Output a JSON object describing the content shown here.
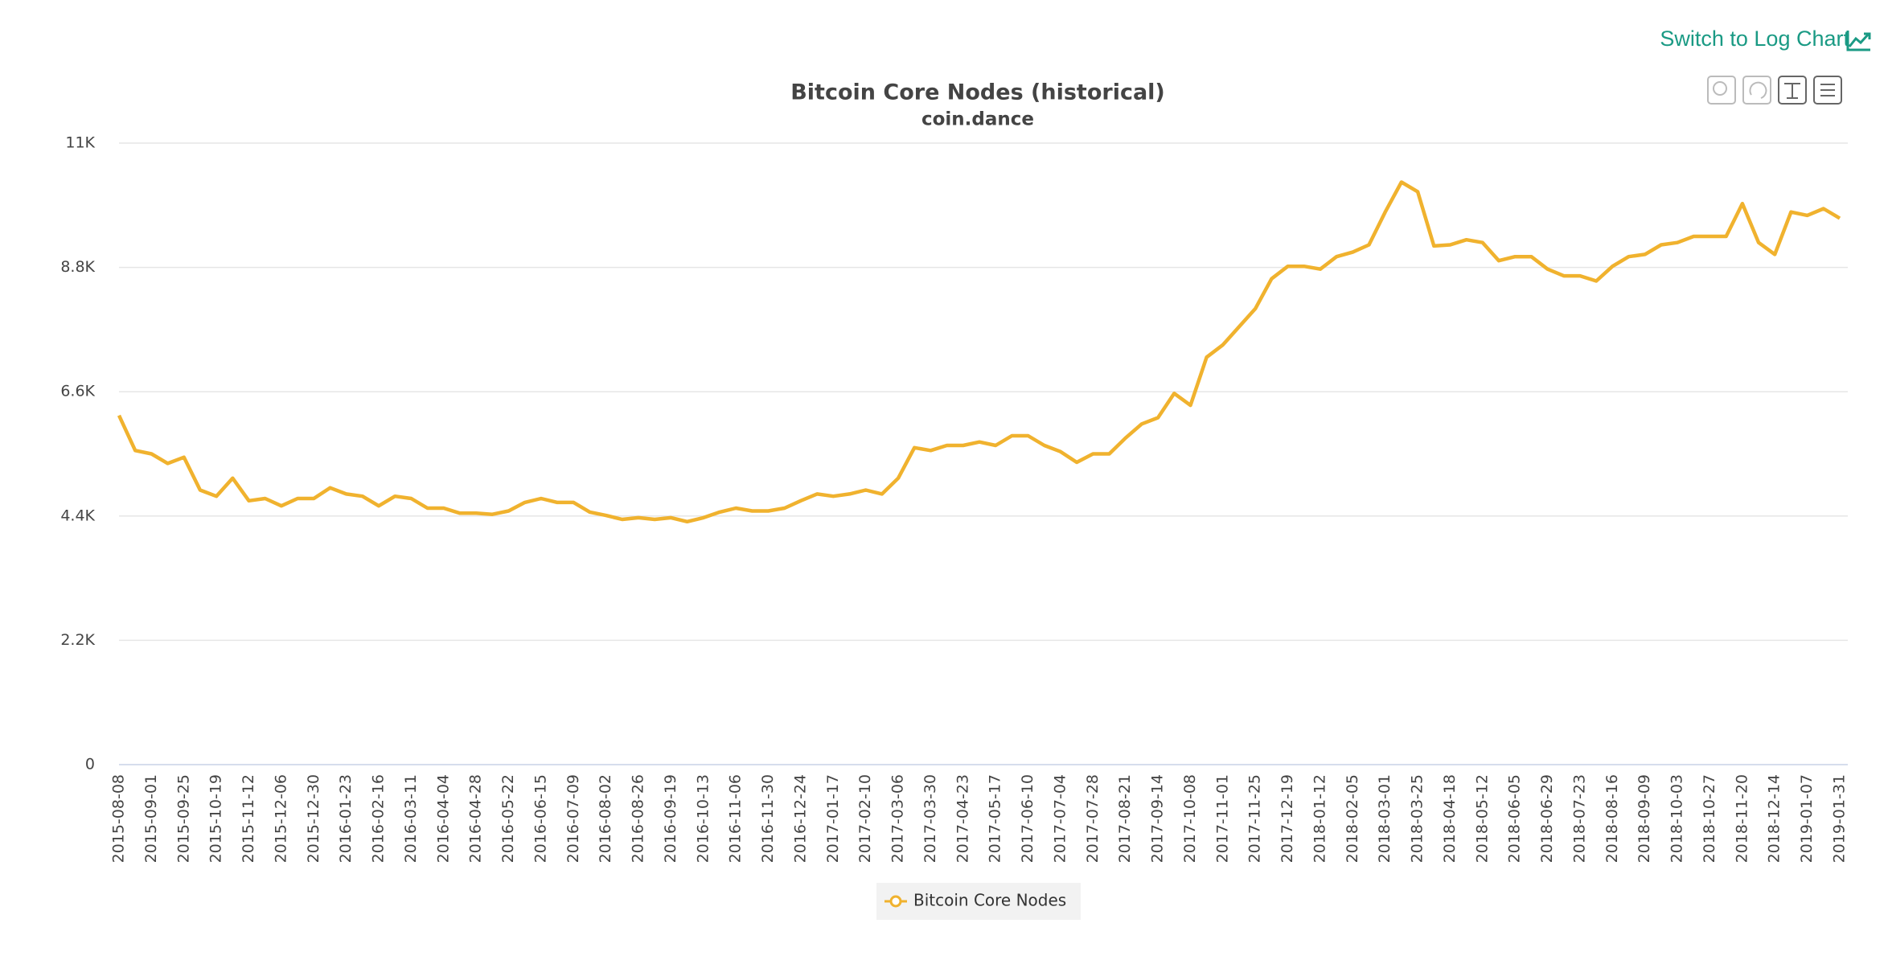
{
  "switch_link": "Switch to Log Chart",
  "chart_data": {
    "type": "line",
    "title": "Bitcoin Core Nodes (historical)",
    "subtitle": "coin.dance",
    "categories": [
      "2015-08-08",
      null,
      "2015-09-01",
      null,
      "2015-09-25",
      null,
      "2015-10-19",
      null,
      "2015-11-12",
      null,
      "2015-12-06",
      null,
      "2015-12-30",
      null,
      "2016-01-23",
      null,
      "2016-02-16",
      null,
      "2016-03-11",
      null,
      "2016-04-04",
      null,
      "2016-04-28",
      null,
      "2016-05-22",
      null,
      "2016-06-15",
      null,
      "2016-07-09",
      null,
      "2016-08-02",
      null,
      "2016-08-26",
      null,
      "2016-09-19",
      null,
      "2016-10-13",
      null,
      "2016-11-06",
      null,
      "2016-11-30",
      null,
      "2016-12-24",
      null,
      "2017-01-17",
      null,
      "2017-02-10",
      null,
      "2017-03-06",
      null,
      "2017-03-30",
      null,
      "2017-04-23",
      null,
      "2017-05-17",
      null,
      "2017-06-10",
      null,
      "2017-07-04",
      null,
      "2017-07-28",
      null,
      "2017-08-21",
      null,
      "2017-09-14",
      null,
      "2017-10-08",
      null,
      "2017-11-01",
      null,
      "2017-11-25",
      null,
      "2017-12-19",
      null,
      "2018-01-12",
      null,
      "2018-02-05",
      null,
      "2018-03-01",
      null,
      "2018-03-25",
      null,
      "2018-04-18",
      null,
      "2018-05-12",
      null,
      "2018-06-05",
      null,
      "2018-06-29",
      null,
      "2018-07-23",
      null,
      "2018-08-16",
      null,
      "2018-09-09",
      null,
      "2018-10-03",
      null,
      "2018-10-27",
      null,
      "2018-11-20",
      null,
      "2018-12-14",
      null,
      "2019-01-07",
      null,
      "2019-01-31"
    ],
    "series": [
      {
        "name": "Bitcoin Core Nodes",
        "color": "#f0b22e",
        "values": [
          6180,
          5560,
          5500,
          5330,
          5440,
          4860,
          4750,
          5070,
          4670,
          4710,
          4580,
          4710,
          4710,
          4900,
          4790,
          4750,
          4580,
          4750,
          4710,
          4540,
          4540,
          4450,
          4450,
          4430,
          4490,
          4640,
          4710,
          4640,
          4640,
          4470,
          4410,
          4340,
          4370,
          4340,
          4370,
          4300,
          4370,
          4470,
          4540,
          4490,
          4490,
          4540,
          4670,
          4790,
          4750,
          4790,
          4860,
          4790,
          5070,
          5610,
          5560,
          5650,
          5650,
          5710,
          5650,
          5820,
          5820,
          5650,
          5540,
          5350,
          5500,
          5500,
          5780,
          6030,
          6140,
          6570,
          6360,
          7210,
          7430,
          7750,
          8070,
          8600,
          8820,
          8820,
          8770,
          8990,
          9070,
          9200,
          9780,
          10310,
          10140,
          9180,
          9200,
          9290,
          9240,
          8920,
          8990,
          8990,
          8770,
          8650,
          8650,
          8560,
          8820,
          8990,
          9030,
          9200,
          9240,
          9350,
          9350,
          9350,
          9930,
          9240,
          9030,
          9780,
          9720,
          9840,
          9670
        ]
      }
    ],
    "ylim": [
      0,
      11000
    ],
    "yticks": [
      0,
      {
        "value": 2200,
        "label": "2.2K"
      },
      {
        "value": 4400,
        "label": "4.4K"
      },
      {
        "value": 6600,
        "label": "6.6K"
      },
      {
        "value": 8800,
        "label": "8.8K"
      },
      {
        "value": 11000,
        "label": "11K"
      }
    ],
    "grid": true,
    "legend": "bottom"
  }
}
